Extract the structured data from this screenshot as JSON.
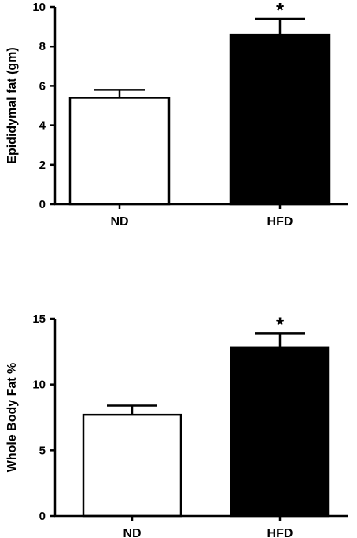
{
  "chart_data": [
    {
      "type": "bar",
      "ylabel": "Epididymal fat (gm)",
      "ylim": [
        0,
        10
      ],
      "yticks": [
        0,
        2,
        4,
        6,
        8,
        10
      ],
      "categories": [
        "ND",
        "HFD"
      ],
      "values": [
        5.4,
        8.6
      ],
      "errors": [
        0.4,
        0.8
      ],
      "bar_fills": [
        "#ffffff",
        "#000000"
      ],
      "annotations": [
        "",
        "*"
      ]
    },
    {
      "type": "bar",
      "ylabel": "Whole Body Fat %",
      "ylim": [
        0,
        15
      ],
      "yticks": [
        0,
        5,
        10,
        15
      ],
      "categories": [
        "ND",
        "HFD"
      ],
      "values": [
        7.7,
        12.8
      ],
      "errors": [
        0.7,
        1.1
      ],
      "bar_fills": [
        "#ffffff",
        "#000000"
      ],
      "annotations": [
        "",
        "*"
      ]
    }
  ]
}
